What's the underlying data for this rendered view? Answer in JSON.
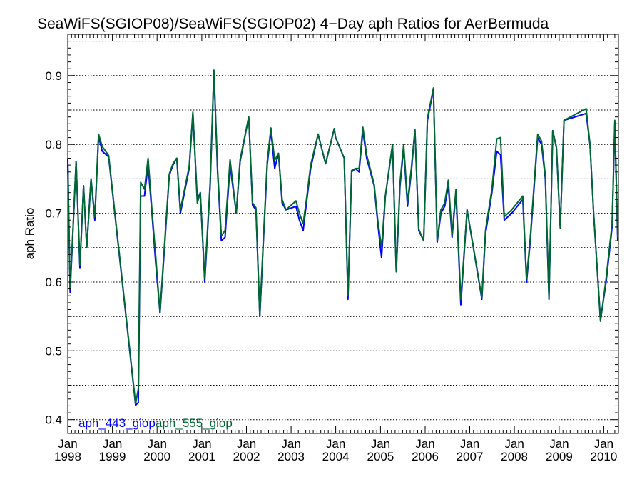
{
  "chart_data": {
    "type": "line",
    "title": "SeaWiFS(SGIOP08)/SeaWiFS(SGIOP02) 4−Day aph Ratios for AerBermuda",
    "xlabel": "",
    "ylabel": "aph Ratio",
    "xlim": [
      "1998-01-01",
      "2010-05-01"
    ],
    "ylim": [
      0.38,
      0.96
    ],
    "yticks": [
      "0.4",
      "0.5",
      "0.6",
      "0.7",
      "0.8",
      "0.9"
    ],
    "xticks": [
      {
        "month": "Jan",
        "year": "1998"
      },
      {
        "month": "Jan",
        "year": "1999"
      },
      {
        "month": "Jan",
        "year": "2000"
      },
      {
        "month": "Jan",
        "year": "2001"
      },
      {
        "month": "Jan",
        "year": "2002"
      },
      {
        "month": "Jan",
        "year": "2003"
      },
      {
        "month": "Jan",
        "year": "2004"
      },
      {
        "month": "Jan",
        "year": "2005"
      },
      {
        "month": "Jan",
        "year": "2006"
      },
      {
        "month": "Jan",
        "year": "2007"
      },
      {
        "month": "Jan",
        "year": "2008"
      },
      {
        "month": "Jan",
        "year": "2009"
      },
      {
        "month": "Jan",
        "year": "2010"
      }
    ],
    "grid": "horizontal dotted",
    "legend": "bottom-left",
    "series": [
      {
        "name": "aph_443_giop",
        "color": "#0000ff",
        "points": [
          [
            "1998-01-01",
            0.78
          ],
          [
            "1998-01-20",
            0.585
          ],
          [
            "1998-03-10",
            0.775
          ],
          [
            "1998-04-10",
            0.62
          ],
          [
            "1998-05-10",
            0.74
          ],
          [
            "1998-06-05",
            0.65
          ],
          [
            "1998-07-10",
            0.75
          ],
          [
            "1998-08-10",
            0.69
          ],
          [
            "1998-09-10",
            0.812
          ],
          [
            "1998-10-10",
            0.79
          ],
          [
            "1998-12-01",
            0.782
          ],
          [
            "1999-07-10",
            0.421
          ],
          [
            "1999-08-01",
            0.425
          ],
          [
            "1999-08-20",
            0.725
          ],
          [
            "1999-09-20",
            0.725
          ],
          [
            "1999-10-20",
            0.77
          ],
          [
            "1999-11-20",
            0.7
          ],
          [
            "1999-12-20",
            0.63
          ],
          [
            "2000-01-25",
            0.555
          ],
          [
            "2000-02-20",
            0.62
          ],
          [
            "2000-04-10",
            0.755
          ],
          [
            "2000-05-10",
            0.77
          ],
          [
            "2000-06-10",
            0.78
          ],
          [
            "2000-07-10",
            0.7
          ],
          [
            "2000-09-20",
            0.765
          ],
          [
            "2000-10-20",
            0.845
          ],
          [
            "2000-11-25",
            0.72
          ],
          [
            "2000-12-20",
            0.73
          ],
          [
            "2001-01-25",
            0.6
          ],
          [
            "2001-03-10",
            0.74
          ],
          [
            "2001-04-10",
            0.905
          ],
          [
            "2001-05-10",
            0.76
          ],
          [
            "2001-06-10",
            0.66
          ],
          [
            "2001-07-10",
            0.665
          ],
          [
            "2001-08-20",
            0.77
          ],
          [
            "2001-10-10",
            0.7
          ],
          [
            "2001-11-10",
            0.775
          ],
          [
            "2002-01-20",
            0.84
          ],
          [
            "2002-02-20",
            0.712
          ],
          [
            "2002-03-20",
            0.705
          ],
          [
            "2002-04-20",
            0.55
          ],
          [
            "2002-05-20",
            0.66
          ],
          [
            "2002-06-20",
            0.77
          ],
          [
            "2002-07-20",
            0.82
          ],
          [
            "2002-08-20",
            0.765
          ],
          [
            "2002-09-20",
            0.787
          ],
          [
            "2002-10-20",
            0.715
          ],
          [
            "2002-11-20",
            0.705
          ],
          [
            "2003-02-10",
            0.71
          ],
          [
            "2003-03-10",
            0.69
          ],
          [
            "2003-04-10",
            0.675
          ],
          [
            "2003-05-10",
            0.72
          ],
          [
            "2003-06-10",
            0.765
          ],
          [
            "2003-08-10",
            0.815
          ],
          [
            "2003-10-10",
            0.772
          ],
          [
            "2003-12-20",
            0.823
          ],
          [
            "2003-12-31",
            0.81
          ],
          [
            "2004-03-10",
            0.78
          ],
          [
            "2004-04-10",
            0.575
          ],
          [
            "2004-05-10",
            0.76
          ],
          [
            "2004-06-10",
            0.765
          ],
          [
            "2004-07-10",
            0.76
          ],
          [
            "2004-08-10",
            0.82
          ],
          [
            "2004-09-10",
            0.78
          ],
          [
            "2004-11-10",
            0.74
          ],
          [
            "2004-12-10",
            0.685
          ],
          [
            "2005-01-10",
            0.635
          ],
          [
            "2005-02-10",
            0.725
          ],
          [
            "2005-04-10",
            0.8
          ],
          [
            "2005-05-10",
            0.615
          ],
          [
            "2005-06-10",
            0.74
          ],
          [
            "2005-07-10",
            0.795
          ],
          [
            "2005-08-10",
            0.71
          ],
          [
            "2005-09-10",
            0.76
          ],
          [
            "2005-10-10",
            0.82
          ],
          [
            "2005-11-10",
            0.675
          ],
          [
            "2005-12-20",
            0.66
          ],
          [
            "2006-01-20",
            0.835
          ],
          [
            "2006-03-10",
            0.88
          ],
          [
            "2006-04-10",
            0.658
          ],
          [
            "2006-05-10",
            0.7
          ],
          [
            "2006-06-10",
            0.71
          ],
          [
            "2006-07-10",
            0.74
          ],
          [
            "2006-08-10",
            0.665
          ],
          [
            "2006-09-10",
            0.73
          ],
          [
            "2006-10-20",
            0.567
          ],
          [
            "2006-12-10",
            0.705
          ],
          [
            "2007-04-10",
            0.575
          ],
          [
            "2007-05-10",
            0.67
          ],
          [
            "2007-07-01",
            0.73
          ],
          [
            "2007-08-10",
            0.79
          ],
          [
            "2007-09-10",
            0.785
          ],
          [
            "2007-10-10",
            0.69
          ],
          [
            "2007-12-10",
            0.7
          ],
          [
            "2008-03-10",
            0.72
          ],
          [
            "2008-04-10",
            0.6
          ],
          [
            "2008-05-10",
            0.66
          ],
          [
            "2008-07-10",
            0.81
          ],
          [
            "2008-08-10",
            0.8
          ],
          [
            "2008-09-10",
            0.75
          ],
          [
            "2008-10-10",
            0.575
          ],
          [
            "2008-11-10",
            0.82
          ],
          [
            "2008-12-10",
            0.795
          ],
          [
            "2009-01-10",
            0.68
          ],
          [
            "2009-02-10",
            0.835
          ],
          [
            "2009-08-10",
            0.845
          ],
          [
            "2009-09-10",
            0.8
          ],
          [
            "2009-10-10",
            0.7
          ],
          [
            "2009-12-05",
            0.545
          ],
          [
            "2010-01-20",
            0.6
          ],
          [
            "2010-03-10",
            0.68
          ],
          [
            "2010-04-01",
            0.83
          ],
          [
            "2010-04-25",
            0.66
          ]
        ]
      },
      {
        "name": "aph_555_giop",
        "color": "#006633",
        "points": [
          [
            "1998-01-01",
            0.77
          ],
          [
            "1998-01-20",
            0.59
          ],
          [
            "1998-03-10",
            0.775
          ],
          [
            "1998-04-10",
            0.625
          ],
          [
            "1998-05-10",
            0.74
          ],
          [
            "1998-06-05",
            0.65
          ],
          [
            "1998-07-10",
            0.75
          ],
          [
            "1998-08-10",
            0.695
          ],
          [
            "1998-09-10",
            0.815
          ],
          [
            "1998-10-10",
            0.797
          ],
          [
            "1998-12-01",
            0.784
          ],
          [
            "1999-07-10",
            0.423
          ],
          [
            "1999-08-01",
            0.445
          ],
          [
            "1999-08-20",
            0.745
          ],
          [
            "1999-09-20",
            0.735
          ],
          [
            "1999-10-20",
            0.78
          ],
          [
            "1999-11-20",
            0.705
          ],
          [
            "1999-12-20",
            0.64
          ],
          [
            "2000-01-25",
            0.555
          ],
          [
            "2000-02-20",
            0.625
          ],
          [
            "2000-04-10",
            0.757
          ],
          [
            "2000-05-10",
            0.772
          ],
          [
            "2000-06-10",
            0.78
          ],
          [
            "2000-07-10",
            0.705
          ],
          [
            "2000-09-20",
            0.768
          ],
          [
            "2000-10-20",
            0.847
          ],
          [
            "2000-11-25",
            0.715
          ],
          [
            "2000-12-20",
            0.73
          ],
          [
            "2001-01-25",
            0.605
          ],
          [
            "2001-03-10",
            0.745
          ],
          [
            "2001-04-10",
            0.908
          ],
          [
            "2001-05-10",
            0.765
          ],
          [
            "2001-06-10",
            0.667
          ],
          [
            "2001-07-10",
            0.675
          ],
          [
            "2001-08-20",
            0.778
          ],
          [
            "2001-10-10",
            0.7
          ],
          [
            "2001-11-10",
            0.778
          ],
          [
            "2002-01-20",
            0.84
          ],
          [
            "2002-02-20",
            0.715
          ],
          [
            "2002-03-20",
            0.708
          ],
          [
            "2002-04-20",
            0.55
          ],
          [
            "2002-05-20",
            0.665
          ],
          [
            "2002-06-20",
            0.775
          ],
          [
            "2002-07-20",
            0.824
          ],
          [
            "2002-08-20",
            0.777
          ],
          [
            "2002-09-20",
            0.787
          ],
          [
            "2002-10-20",
            0.72
          ],
          [
            "2002-11-20",
            0.705
          ],
          [
            "2003-02-10",
            0.718
          ],
          [
            "2003-03-10",
            0.7
          ],
          [
            "2003-04-10",
            0.685
          ],
          [
            "2003-05-10",
            0.725
          ],
          [
            "2003-06-10",
            0.77
          ],
          [
            "2003-08-10",
            0.815
          ],
          [
            "2003-10-10",
            0.772
          ],
          [
            "2003-12-20",
            0.823
          ],
          [
            "2003-12-31",
            0.81
          ],
          [
            "2004-03-10",
            0.78
          ],
          [
            "2004-04-10",
            0.58
          ],
          [
            "2004-05-10",
            0.762
          ],
          [
            "2004-06-10",
            0.765
          ],
          [
            "2004-07-10",
            0.765
          ],
          [
            "2004-08-10",
            0.825
          ],
          [
            "2004-09-10",
            0.785
          ],
          [
            "2004-11-10",
            0.742
          ],
          [
            "2004-12-10",
            0.69
          ],
          [
            "2005-01-10",
            0.65
          ],
          [
            "2005-02-10",
            0.725
          ],
          [
            "2005-04-10",
            0.8
          ],
          [
            "2005-05-10",
            0.615
          ],
          [
            "2005-06-10",
            0.745
          ],
          [
            "2005-07-10",
            0.8
          ],
          [
            "2005-08-10",
            0.715
          ],
          [
            "2005-09-10",
            0.765
          ],
          [
            "2005-10-10",
            0.822
          ],
          [
            "2005-11-10",
            0.677
          ],
          [
            "2005-12-20",
            0.66
          ],
          [
            "2006-01-20",
            0.838
          ],
          [
            "2006-03-10",
            0.882
          ],
          [
            "2006-04-10",
            0.66
          ],
          [
            "2006-05-10",
            0.705
          ],
          [
            "2006-06-10",
            0.715
          ],
          [
            "2006-07-10",
            0.748
          ],
          [
            "2006-08-10",
            0.668
          ],
          [
            "2006-09-10",
            0.735
          ],
          [
            "2006-10-20",
            0.575
          ],
          [
            "2006-12-10",
            0.705
          ],
          [
            "2007-04-10",
            0.577
          ],
          [
            "2007-05-10",
            0.675
          ],
          [
            "2007-07-01",
            0.735
          ],
          [
            "2007-08-10",
            0.808
          ],
          [
            "2007-09-10",
            0.81
          ],
          [
            "2007-10-10",
            0.695
          ],
          [
            "2007-12-10",
            0.705
          ],
          [
            "2008-03-10",
            0.725
          ],
          [
            "2008-04-10",
            0.605
          ],
          [
            "2008-05-10",
            0.665
          ],
          [
            "2008-07-10",
            0.815
          ],
          [
            "2008-08-10",
            0.805
          ],
          [
            "2008-09-10",
            0.755
          ],
          [
            "2008-10-10",
            0.578
          ],
          [
            "2008-11-10",
            0.82
          ],
          [
            "2008-12-10",
            0.795
          ],
          [
            "2009-01-10",
            0.678
          ],
          [
            "2009-02-10",
            0.835
          ],
          [
            "2009-08-10",
            0.852
          ],
          [
            "2009-09-10",
            0.8
          ],
          [
            "2009-10-10",
            0.7
          ],
          [
            "2009-12-05",
            0.543
          ],
          [
            "2010-01-20",
            0.605
          ],
          [
            "2010-03-10",
            0.685
          ],
          [
            "2010-04-01",
            0.835
          ],
          [
            "2010-04-25",
            0.665
          ]
        ]
      }
    ]
  }
}
